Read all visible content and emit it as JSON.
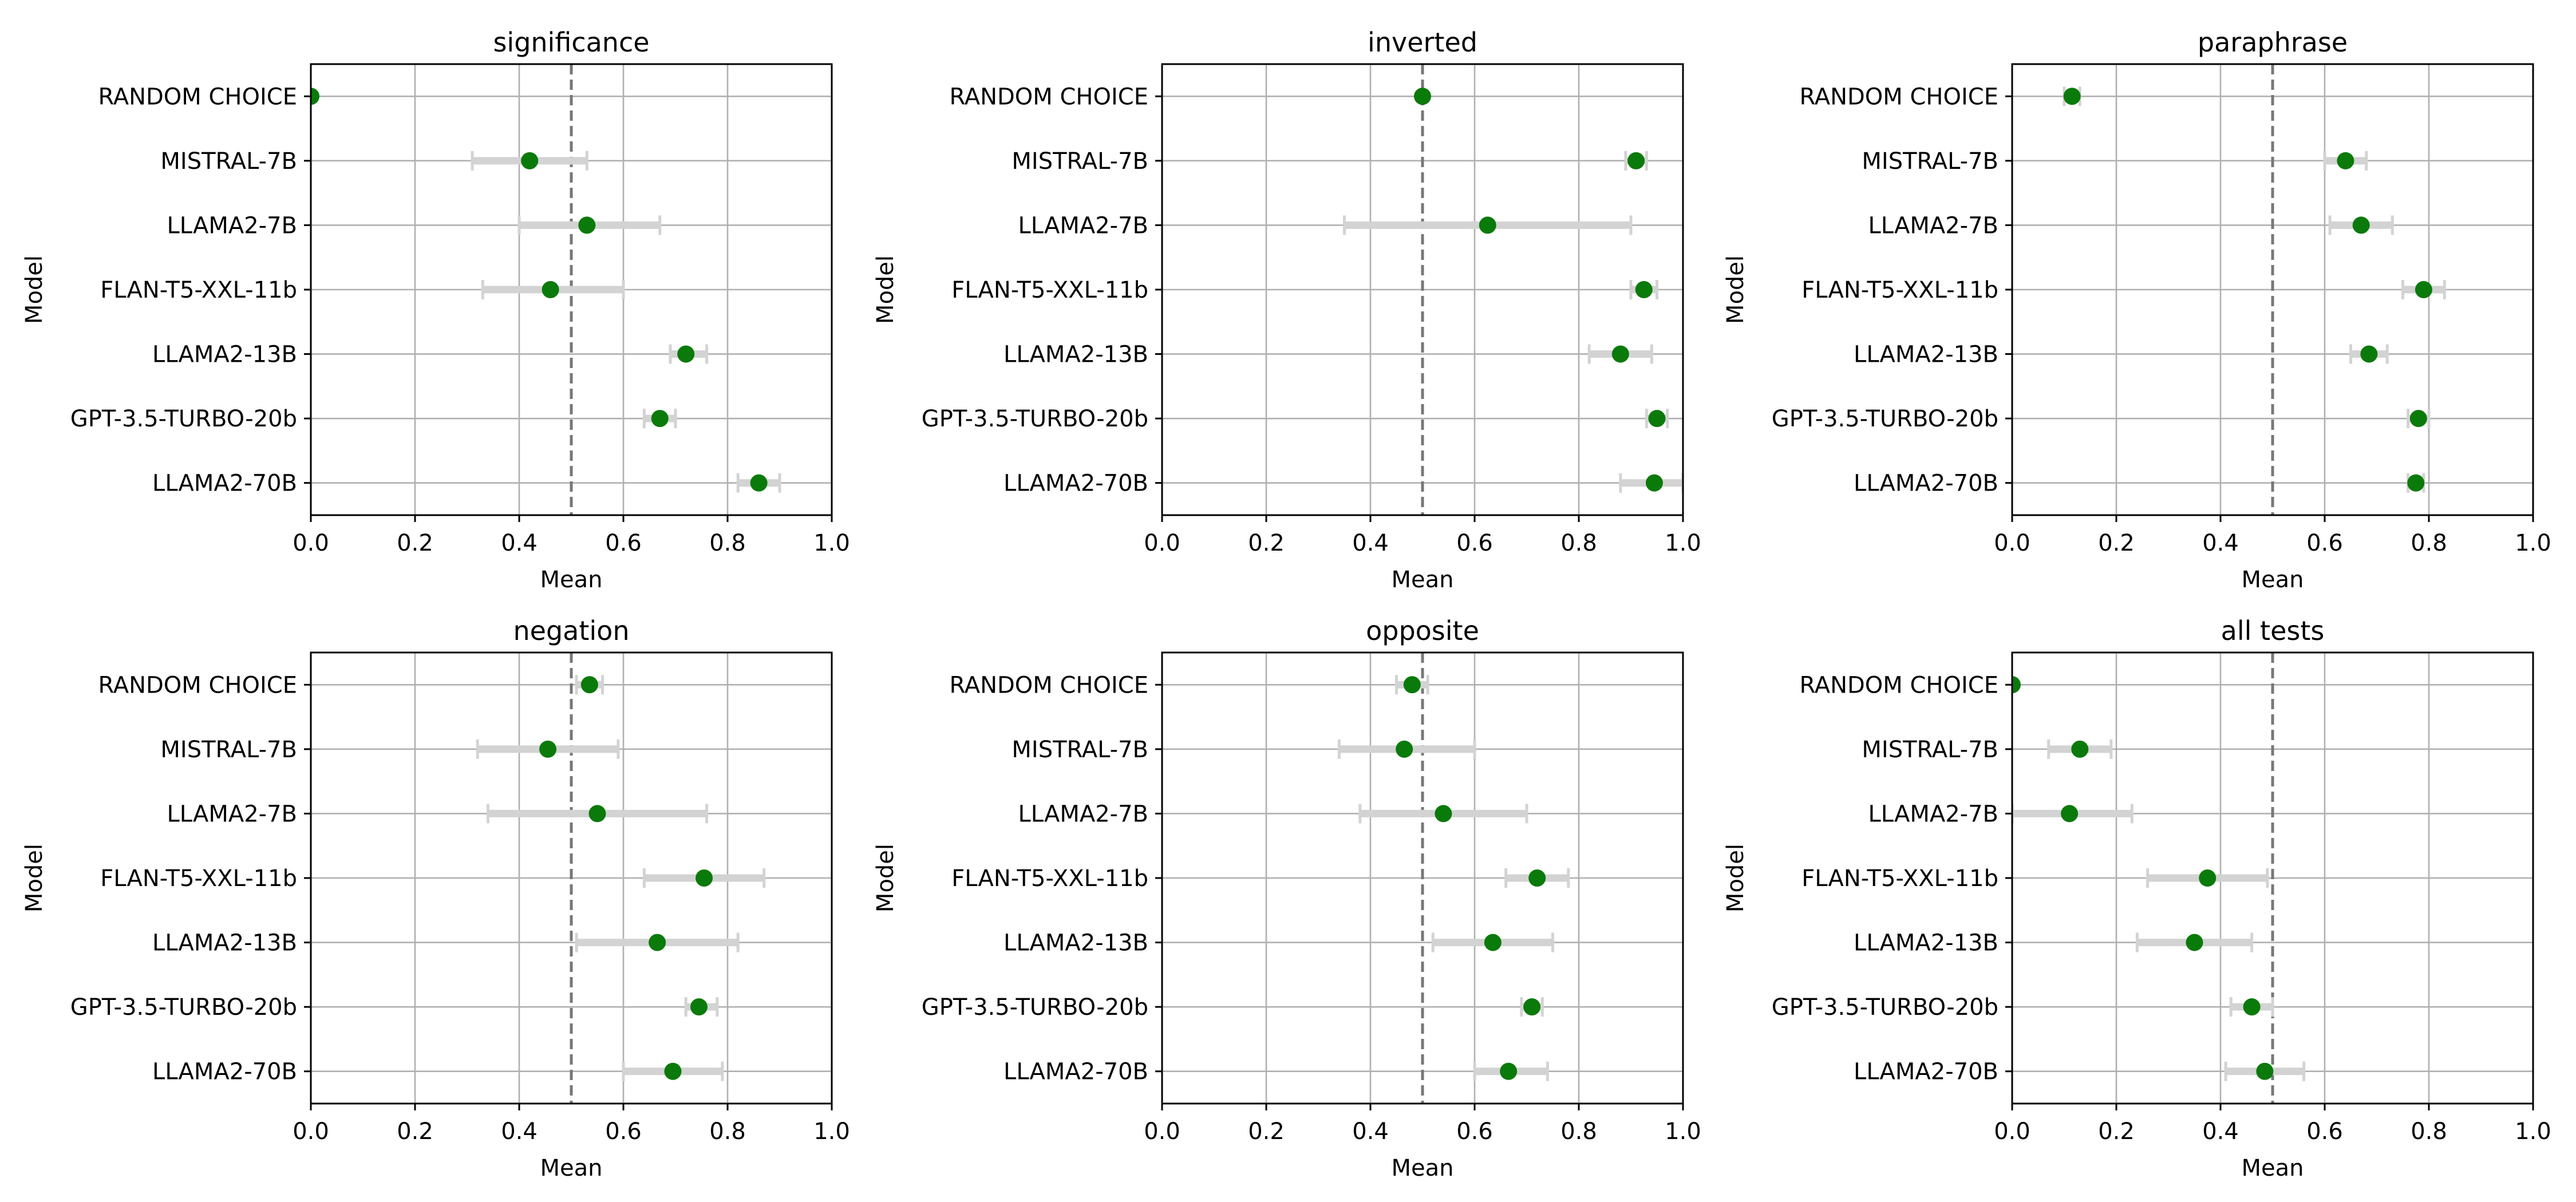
{
  "chart_data": [
    {
      "type": "scatter",
      "title": "significance",
      "xlabel": "Mean",
      "ylabel": "Model",
      "xlim": [
        0,
        1
      ],
      "xticks": [
        "0.0",
        "0.2",
        "0.4",
        "0.6",
        "0.8",
        "1.0"
      ],
      "grid": true,
      "reference_line_x": 0.5,
      "categories": [
        "RANDOM CHOICE",
        "MISTRAL-7B",
        "LLAMA2-7B",
        "FLAN-T5-XXL-11b",
        "LLAMA2-13B",
        "GPT-3.5-TURBO-20b",
        "LLAMA2-70B"
      ],
      "values": [
        0.0,
        0.42,
        0.53,
        0.46,
        0.72,
        0.67,
        0.86
      ],
      "error": [
        [
          0.0,
          0.0
        ],
        [
          0.31,
          0.53
        ],
        [
          0.4,
          0.67
        ],
        [
          0.33,
          0.6
        ],
        [
          0.69,
          0.76
        ],
        [
          0.64,
          0.7
        ],
        [
          0.82,
          0.9
        ]
      ],
      "point_color": "#0a7a0a",
      "error_color": "#d3d3d3"
    },
    {
      "type": "scatter",
      "title": "inverted",
      "xlabel": "Mean",
      "ylabel": "Model",
      "xlim": [
        0,
        1
      ],
      "xticks": [
        "0.0",
        "0.2",
        "0.4",
        "0.6",
        "0.8",
        "1.0"
      ],
      "grid": true,
      "reference_line_x": 0.5,
      "categories": [
        "RANDOM CHOICE",
        "MISTRAL-7B",
        "LLAMA2-7B",
        "FLAN-T5-XXL-11b",
        "LLAMA2-13B",
        "GPT-3.5-TURBO-20b",
        "LLAMA2-70B"
      ],
      "values": [
        0.5,
        0.91,
        0.625,
        0.925,
        0.88,
        0.95,
        0.945
      ],
      "error": [
        [
          0.5,
          0.5
        ],
        [
          0.89,
          0.93
        ],
        [
          0.35,
          0.9
        ],
        [
          0.9,
          0.95
        ],
        [
          0.82,
          0.94
        ],
        [
          0.93,
          0.97
        ],
        [
          0.88,
          1.0
        ]
      ],
      "point_color": "#0a7a0a",
      "error_color": "#d3d3d3"
    },
    {
      "type": "scatter",
      "title": "paraphrase",
      "xlabel": "Mean",
      "ylabel": "Model",
      "xlim": [
        0,
        1
      ],
      "xticks": [
        "0.0",
        "0.2",
        "0.4",
        "0.6",
        "0.8",
        "1.0"
      ],
      "grid": true,
      "reference_line_x": 0.5,
      "categories": [
        "RANDOM CHOICE",
        "MISTRAL-7B",
        "LLAMA2-7B",
        "FLAN-T5-XXL-11b",
        "LLAMA2-13B",
        "GPT-3.5-TURBO-20b",
        "LLAMA2-70B"
      ],
      "values": [
        0.115,
        0.64,
        0.67,
        0.79,
        0.685,
        0.78,
        0.775
      ],
      "error": [
        [
          0.1,
          0.13
        ],
        [
          0.6,
          0.68
        ],
        [
          0.61,
          0.73
        ],
        [
          0.75,
          0.83
        ],
        [
          0.65,
          0.72
        ],
        [
          0.76,
          0.8
        ],
        [
          0.76,
          0.79
        ]
      ],
      "point_color": "#0a7a0a",
      "error_color": "#d3d3d3"
    },
    {
      "type": "scatter",
      "title": "negation",
      "xlabel": "Mean",
      "ylabel": "Model",
      "xlim": [
        0,
        1
      ],
      "xticks": [
        "0.0",
        "0.2",
        "0.4",
        "0.6",
        "0.8",
        "1.0"
      ],
      "grid": true,
      "reference_line_x": 0.5,
      "categories": [
        "RANDOM CHOICE",
        "MISTRAL-7B",
        "LLAMA2-7B",
        "FLAN-T5-XXL-11b",
        "LLAMA2-13B",
        "GPT-3.5-TURBO-20b",
        "LLAMA2-70B"
      ],
      "values": [
        0.535,
        0.455,
        0.55,
        0.755,
        0.665,
        0.745,
        0.695
      ],
      "error": [
        [
          0.51,
          0.56
        ],
        [
          0.32,
          0.59
        ],
        [
          0.34,
          0.76
        ],
        [
          0.64,
          0.87
        ],
        [
          0.51,
          0.82
        ],
        [
          0.72,
          0.78
        ],
        [
          0.6,
          0.79
        ]
      ],
      "point_color": "#0a7a0a",
      "error_color": "#d3d3d3"
    },
    {
      "type": "scatter",
      "title": "opposite",
      "xlabel": "Mean",
      "ylabel": "Model",
      "xlim": [
        0,
        1
      ],
      "xticks": [
        "0.0",
        "0.2",
        "0.4",
        "0.6",
        "0.8",
        "1.0"
      ],
      "grid": true,
      "reference_line_x": 0.5,
      "categories": [
        "RANDOM CHOICE",
        "MISTRAL-7B",
        "LLAMA2-7B",
        "FLAN-T5-XXL-11b",
        "LLAMA2-13B",
        "GPT-3.5-TURBO-20b",
        "LLAMA2-70B"
      ],
      "values": [
        0.48,
        0.465,
        0.54,
        0.72,
        0.635,
        0.71,
        0.665
      ],
      "error": [
        [
          0.45,
          0.51
        ],
        [
          0.34,
          0.6
        ],
        [
          0.38,
          0.7
        ],
        [
          0.66,
          0.78
        ],
        [
          0.52,
          0.75
        ],
        [
          0.69,
          0.73
        ],
        [
          0.6,
          0.74
        ]
      ],
      "point_color": "#0a7a0a",
      "error_color": "#d3d3d3"
    },
    {
      "type": "scatter",
      "title": "all tests",
      "xlabel": "Mean",
      "ylabel": "Model",
      "xlim": [
        0,
        1
      ],
      "xticks": [
        "0.0",
        "0.2",
        "0.4",
        "0.6",
        "0.8",
        "1.0"
      ],
      "grid": true,
      "reference_line_x": 0.5,
      "categories": [
        "RANDOM CHOICE",
        "MISTRAL-7B",
        "LLAMA2-7B",
        "FLAN-T5-XXL-11b",
        "LLAMA2-13B",
        "GPT-3.5-TURBO-20b",
        "LLAMA2-70B"
      ],
      "values": [
        0.0,
        0.13,
        0.11,
        0.375,
        0.35,
        0.46,
        0.485
      ],
      "error": [
        [
          0.0,
          0.0
        ],
        [
          0.07,
          0.19
        ],
        [
          0.0,
          0.23
        ],
        [
          0.26,
          0.49
        ],
        [
          0.24,
          0.46
        ],
        [
          0.42,
          0.5
        ],
        [
          0.41,
          0.56
        ]
      ],
      "point_color": "#0a7a0a",
      "error_color": "#d3d3d3"
    }
  ]
}
